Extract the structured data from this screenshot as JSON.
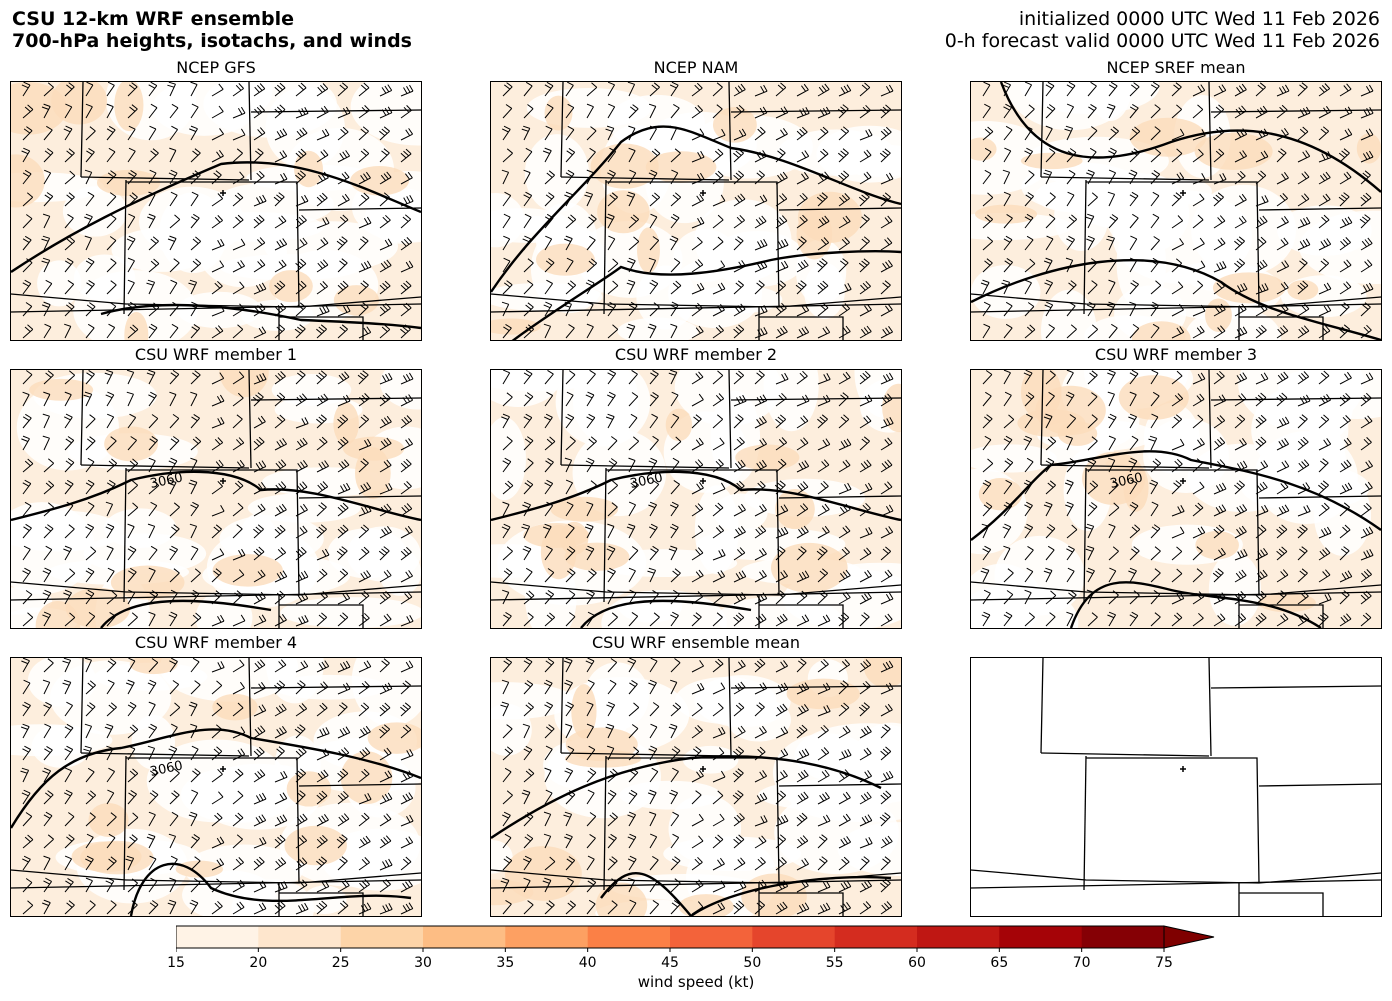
{
  "header": {
    "title_line1": "CSU 12-km WRF ensemble",
    "title_line2": "700-hPa heights, isotachs, and winds",
    "init_line": "initialized 0000 UTC Wed 11 Feb 2026",
    "valid_line": "0-h forecast valid 0000 UTC Wed 11 Feb 2026"
  },
  "panels": [
    {
      "title": "NCEP GFS",
      "contour_label": ""
    },
    {
      "title": "NCEP NAM",
      "contour_label": ""
    },
    {
      "title": "NCEP SREF mean",
      "contour_label": ""
    },
    {
      "title": "CSU WRF member 1",
      "contour_label": "3060"
    },
    {
      "title": "CSU WRF member 2",
      "contour_label": "3060"
    },
    {
      "title": "CSU WRF member 3",
      "contour_label": "3060"
    },
    {
      "title": "CSU WRF member 4",
      "contour_label": "3060"
    },
    {
      "title": "CSU WRF ensemble mean",
      "contour_label": ""
    },
    {
      "title": "",
      "contour_label": ""
    }
  ],
  "colorbar": {
    "ticks": [
      "15",
      "20",
      "25",
      "30",
      "35",
      "40",
      "45",
      "50",
      "55",
      "60",
      "65",
      "70",
      "75"
    ],
    "colors": [
      "#fff3e6",
      "#fee6cd",
      "#fdd4a8",
      "#fdbd84",
      "#fda062",
      "#fb8046",
      "#f3633a",
      "#e5452c",
      "#d42c1f",
      "#bf1713",
      "#a50307",
      "#850005"
    ],
    "extend_color": "#7f0000",
    "label": "wind speed (kt)"
  },
  "colors": {
    "shade_light": "#fdeedd",
    "shade_mid": "#fbdcbc",
    "line": "#000000"
  }
}
